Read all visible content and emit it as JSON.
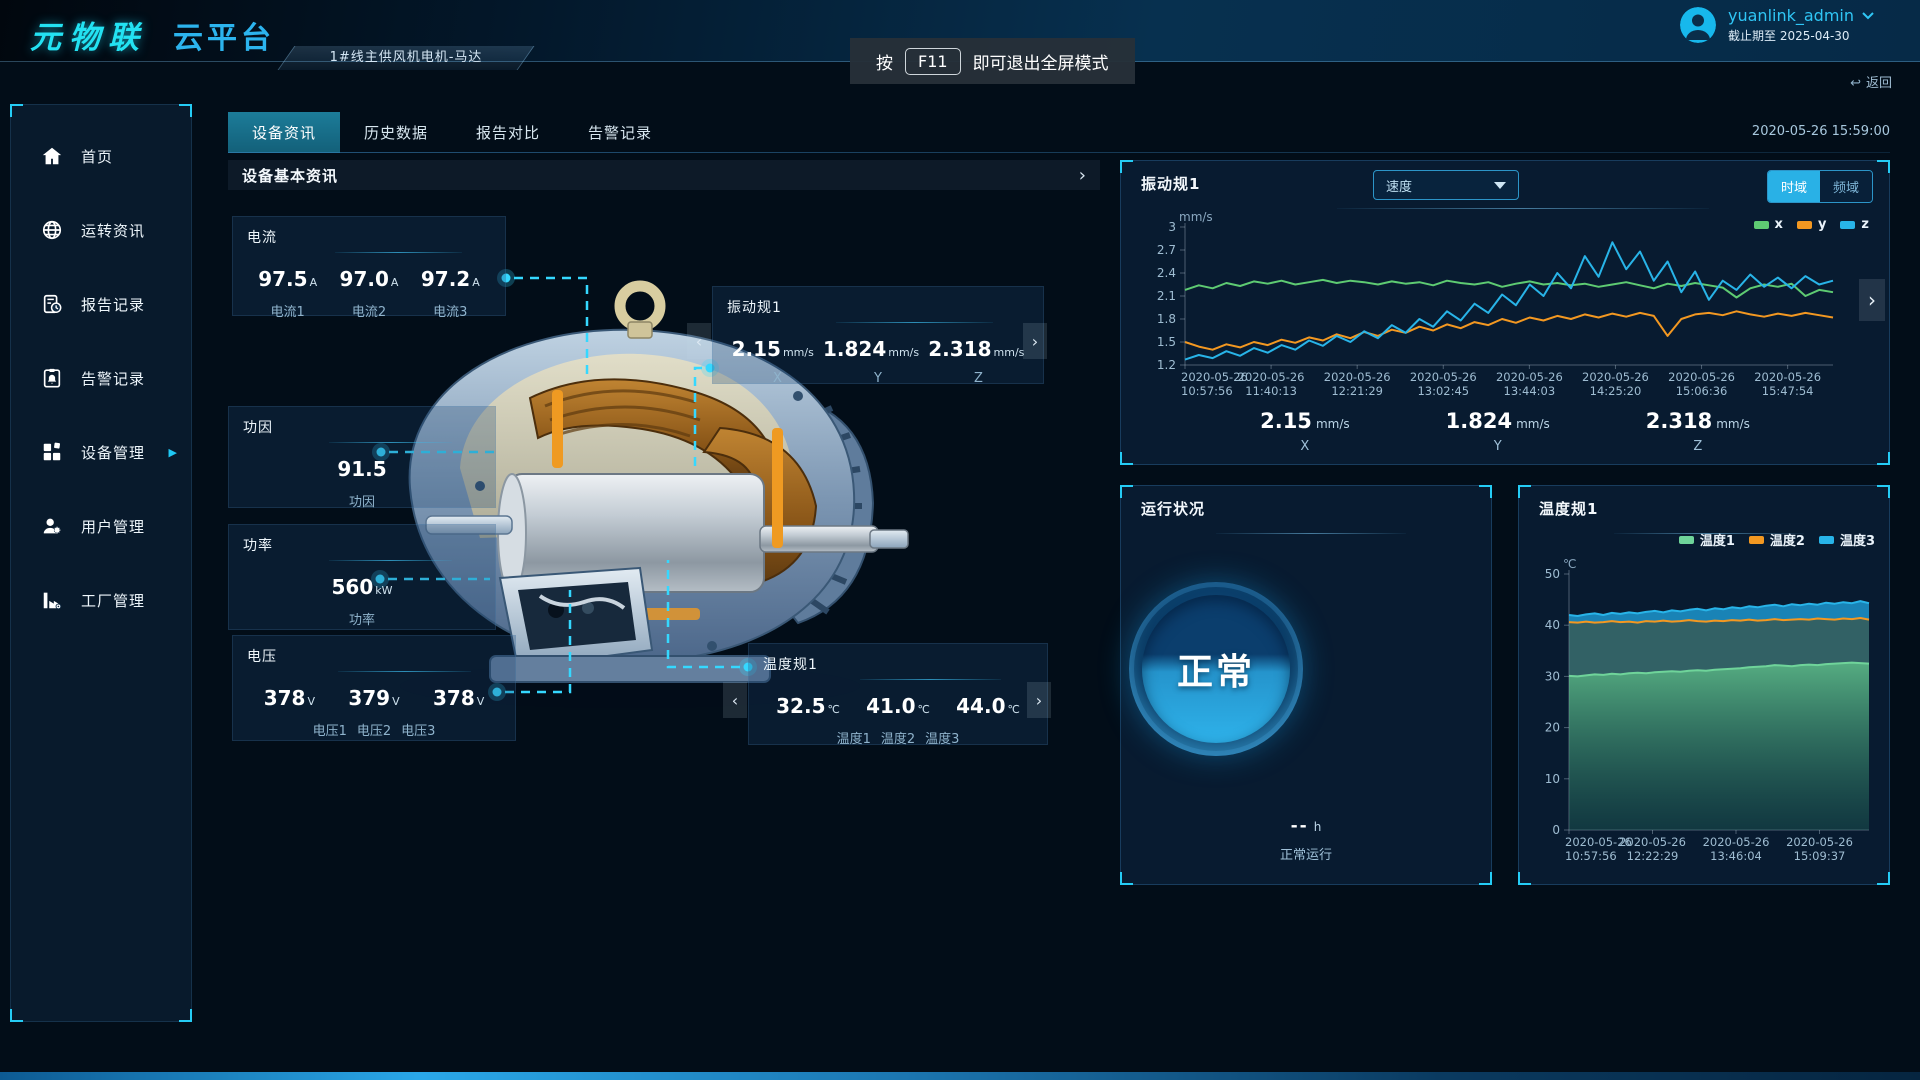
{
  "icons": {
    "chevron_right": "›",
    "chevron_left": "‹",
    "expand_arrow": "▶",
    "back_arrow": "↩",
    "panel_arrow": ">"
  },
  "header": {
    "logo_primary": "元物联",
    "logo_secondary": "云平台",
    "breadcrumb": "1#线主供风机电机-马达",
    "fullscreen_toast": {
      "prefix": "按",
      "key": "F11",
      "suffix": "即可退出全屏模式"
    },
    "user": {
      "name": "yuanlink_admin",
      "expiry": "截止期至 2025-04-30"
    },
    "back_label": "返回"
  },
  "sidebar": {
    "items": [
      {
        "label": "首页"
      },
      {
        "label": "运转资讯"
      },
      {
        "label": "报告记录"
      },
      {
        "label": "告警记录"
      },
      {
        "label": "设备管理"
      },
      {
        "label": "用户管理"
      },
      {
        "label": "工厂管理"
      }
    ]
  },
  "tabs": {
    "items": [
      {
        "label": "设备资讯"
      },
      {
        "label": "历史数据"
      },
      {
        "label": "报告对比"
      },
      {
        "label": "告警记录"
      }
    ],
    "active": "设备资讯",
    "timestamp": "2020-05-26 15:59:00"
  },
  "device_panel": {
    "title": "设备基本资讯",
    "current": {
      "title": "电流",
      "values": [
        {
          "value": "97.5",
          "unit": "A",
          "label": "电流1"
        },
        {
          "value": "97.0",
          "unit": "A",
          "label": "电流2"
        },
        {
          "value": "97.2",
          "unit": "A",
          "label": "电流3"
        }
      ]
    },
    "vibration_callout": {
      "title": "振动规1",
      "values": [
        {
          "value": "2.15",
          "unit": "mm/s",
          "label": "X"
        },
        {
          "value": "1.824",
          "unit": "mm/s",
          "label": "Y"
        },
        {
          "value": "2.318",
          "unit": "mm/s",
          "label": "Z"
        }
      ]
    },
    "power_factor": {
      "title": "功因",
      "value": "91.5",
      "label": "功因"
    },
    "power": {
      "title": "功率",
      "value": "560",
      "unit": "kW",
      "label": "功率"
    },
    "voltage": {
      "title": "电压",
      "values": [
        {
          "value": "378",
          "unit": "V",
          "label": "电压1"
        },
        {
          "value": "379",
          "unit": "V",
          "label": "电压2"
        },
        {
          "value": "378",
          "unit": "V",
          "label": "电压3"
        }
      ]
    },
    "temperature_callout": {
      "title": "温度规1",
      "values": [
        {
          "value": "32.5",
          "unit": "℃",
          "label": "温度1"
        },
        {
          "value": "41.0",
          "unit": "℃",
          "label": "温度2"
        },
        {
          "value": "44.0",
          "unit": "℃",
          "label": "温度3"
        }
      ]
    }
  },
  "vibration_panel": {
    "title": "振动规1",
    "dropdown_value": "速度",
    "mode_time": "时域",
    "mode_freq": "频域",
    "stats": [
      {
        "value": "2.15",
        "unit": "mm/s",
        "axis": "X"
      },
      {
        "value": "1.824",
        "unit": "mm/s",
        "axis": "Y"
      },
      {
        "value": "2.318",
        "unit": "mm/s",
        "axis": "Z"
      }
    ]
  },
  "status_panel": {
    "title": "运行状况",
    "status": "正常",
    "hours": "--",
    "hours_unit": "h",
    "caption": "正常运行"
  },
  "temperature_panel": {
    "title": "温度规1"
  },
  "chart_data": [
    {
      "type": "line",
      "title": "振动规1",
      "ylabel": "mm/s",
      "ylim": [
        1.2,
        3
      ],
      "yticks": [
        1.2,
        1.5,
        1.8,
        2.1,
        2.4,
        2.7,
        3
      ],
      "label_span": 0.93,
      "x_labels": [
        [
          "2020-05-26",
          "10:57:56"
        ],
        [
          "2020-05-26",
          "11:40:13"
        ],
        [
          "2020-05-26",
          "12:21:29"
        ],
        [
          "2020-05-26",
          "13:02:45"
        ],
        [
          "2020-05-26",
          "13:44:03"
        ],
        [
          "2020-05-26",
          "14:25:20"
        ],
        [
          "2020-05-26",
          "15:06:36"
        ],
        [
          "2020-05-26",
          "15:47:54"
        ]
      ],
      "legend_position": "top-right",
      "grid": false,
      "series": [
        {
          "name": "x",
          "color": "#5ecb72",
          "values": [
            2.18,
            2.24,
            2.2,
            2.27,
            2.23,
            2.29,
            2.26,
            2.3,
            2.25,
            2.28,
            2.31,
            2.27,
            2.3,
            2.28,
            2.25,
            2.29,
            2.26,
            2.28,
            2.24,
            2.3,
            2.27,
            2.25,
            2.28,
            2.22,
            2.26,
            2.29,
            2.25,
            2.27,
            2.24,
            2.26,
            2.22,
            2.25,
            2.28,
            2.24,
            2.2,
            2.26,
            2.23,
            2.27,
            2.24,
            2.21,
            2.08,
            2.2,
            2.25,
            2.22,
            2.26,
            2.1,
            2.18,
            2.15
          ]
        },
        {
          "name": "y",
          "color": "#f39821",
          "values": [
            1.5,
            1.44,
            1.4,
            1.47,
            1.43,
            1.5,
            1.46,
            1.53,
            1.49,
            1.56,
            1.52,
            1.6,
            1.55,
            1.63,
            1.58,
            1.66,
            1.62,
            1.7,
            1.65,
            1.73,
            1.68,
            1.76,
            1.72,
            1.8,
            1.75,
            1.82,
            1.78,
            1.84,
            1.8,
            1.86,
            1.82,
            1.87,
            1.83,
            1.88,
            1.84,
            1.58,
            1.8,
            1.86,
            1.88,
            1.85,
            1.9,
            1.86,
            1.83,
            1.87,
            1.84,
            1.88,
            1.85,
            1.82
          ]
        },
        {
          "name": "z",
          "color": "#28b4e8",
          "values": [
            1.27,
            1.33,
            1.29,
            1.38,
            1.32,
            1.42,
            1.36,
            1.46,
            1.4,
            1.52,
            1.45,
            1.58,
            1.5,
            1.64,
            1.55,
            1.72,
            1.62,
            1.8,
            1.7,
            1.9,
            1.78,
            2.0,
            1.88,
            2.12,
            1.98,
            2.25,
            2.1,
            2.4,
            2.2,
            2.62,
            2.35,
            2.8,
            2.45,
            2.68,
            2.3,
            2.55,
            2.15,
            2.42,
            2.05,
            2.3,
            2.18,
            2.38,
            2.22,
            2.34,
            2.2,
            2.36,
            2.25,
            2.3
          ]
        }
      ]
    },
    {
      "type": "area",
      "title": "温度规1",
      "ylabel": "℃",
      "ylim": [
        0,
        50
      ],
      "yticks": [
        0,
        10,
        20,
        30,
        40,
        50
      ],
      "label_span": 0.835,
      "x_labels": [
        [
          "2020-05-26",
          "10:57:56"
        ],
        [
          "2020-05-26",
          "12:22:29"
        ],
        [
          "2020-05-26",
          "13:46:04"
        ],
        [
          "2020-05-26",
          "15:09:37"
        ]
      ],
      "legend_position": "top-right",
      "grid": false,
      "series": [
        {
          "name": "温度1",
          "color": "#6fd49a",
          "fill_top": "rgba(105,209,150,0.8)",
          "fill_bottom": "rgba(35,110,95,0.35)",
          "values": [
            30.1,
            30.0,
            30.2,
            30.4,
            30.3,
            30.5,
            30.4,
            30.6,
            30.7,
            30.6,
            30.8,
            30.9,
            31.0,
            30.9,
            31.1,
            31.2,
            31.1,
            31.3,
            31.4,
            31.5,
            31.6,
            31.8,
            31.9,
            32.0,
            32.2,
            32.1,
            32.0,
            32.2,
            32.3,
            32.2,
            32.4,
            32.5,
            32.6,
            32.7,
            32.6,
            32.5
          ]
        },
        {
          "name": "温度2",
          "color": "#f39821",
          "band_fill": "rgba(85,155,145,0.55)",
          "values": [
            40.6,
            40.5,
            40.7,
            40.5,
            40.6,
            40.8,
            40.6,
            40.7,
            40.5,
            40.8,
            40.7,
            40.9,
            40.7,
            40.8,
            41.0,
            40.8,
            40.7,
            40.9,
            40.8,
            41.0,
            40.9,
            41.1,
            40.9,
            41.0,
            41.2,
            41.0,
            41.1,
            41.2,
            41.1,
            41.3,
            41.2,
            41.1,
            41.3,
            41.2,
            41.4,
            41.1
          ]
        },
        {
          "name": "温度3",
          "color": "#28b4e8",
          "band_fill": "rgba(30,158,216,0.8)",
          "values": [
            42.0,
            41.8,
            42.1,
            42.3,
            42.0,
            42.4,
            42.2,
            42.5,
            42.3,
            42.6,
            42.8,
            42.5,
            42.9,
            42.7,
            43.0,
            43.2,
            42.9,
            43.3,
            43.1,
            43.5,
            43.3,
            43.7,
            43.5,
            43.8,
            44.0,
            43.7,
            44.1,
            43.9,
            44.2,
            44.0,
            44.4,
            44.2,
            44.5,
            44.3,
            44.7,
            44.3
          ]
        }
      ]
    }
  ]
}
